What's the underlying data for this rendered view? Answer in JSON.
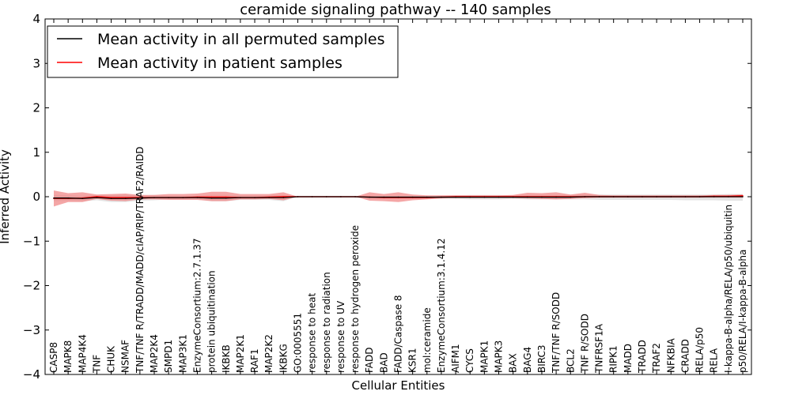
{
  "chart_data": {
    "type": "line",
    "title": "ceramide signaling pathway -- 140 samples",
    "xlabel": "Cellular Entities",
    "ylabel": "Inferred Activity",
    "ylim": [
      -4,
      4
    ],
    "yticks": [
      4,
      3,
      2,
      1,
      0,
      -1,
      -2,
      -3,
      -4
    ],
    "legend_position": "top-left",
    "colors": {
      "permuted_line": "#000000",
      "patient_line": "#ff0000",
      "permuted_band": "#cccccc",
      "patient_band": "#f08080"
    },
    "categories": [
      "CASP8",
      "MAPK8",
      "MAP4K4",
      "TNF",
      "CHUK",
      "NSMAF",
      "TNF/TNF R/TRADD/MADD/cIAP/RIP/TRAF2/RAIDD",
      "MAP2K4",
      "SMPD1",
      "MAP3K1",
      "EnzymeConsortium:2.7.1.37",
      "protein ubiquitination",
      "IKBKB",
      "MAP2K1",
      "RAF1",
      "MAP2K2",
      "IKBKG",
      "GO:0005551",
      "response to heat",
      "response to radiation",
      "response to UV",
      "response to hydrogen peroxide",
      "FADD",
      "BAD",
      "FADD/Caspase 8",
      "KSR1",
      "mol:ceramide",
      "EnzymeConsortium:3.1.4.12",
      "AIFM1",
      "CYCS",
      "MAPK1",
      "MAPK3",
      "BAX",
      "BAG4",
      "BIRC3",
      "TNF/TNF R/SODD",
      "BCL2",
      "TNF R/SODD",
      "TNFRSF1A",
      "RIPK1",
      "MADD",
      "TRADD",
      "TRAF2",
      "NFKBIA",
      "CRADD",
      "RELA/p50",
      "RELA",
      "I-kappa-B-alpha/RELA/p50/ubiquitin",
      "p50/RELA/I-kappa-B-alpha"
    ],
    "series": [
      {
        "name": "Mean activity in all permuted samples",
        "values": [
          -0.03,
          -0.03,
          -0.04,
          -0.02,
          -0.04,
          -0.04,
          -0.03,
          -0.02,
          -0.02,
          -0.02,
          -0.02,
          -0.03,
          -0.03,
          -0.02,
          -0.02,
          -0.02,
          -0.02,
          0,
          0,
          0,
          0,
          0,
          -0.01,
          -0.01,
          -0.01,
          -0.01,
          -0.01,
          -0.01,
          -0.01,
          -0.01,
          -0.01,
          -0.01,
          -0.01,
          -0.01,
          -0.01,
          -0.01,
          -0.01,
          0,
          0,
          0,
          0,
          0,
          0,
          0,
          0,
          0,
          0,
          0,
          0
        ],
        "lower": [
          -0.1,
          -0.09,
          -0.1,
          -0.08,
          -0.12,
          -0.12,
          -0.09,
          -0.08,
          -0.06,
          -0.06,
          -0.06,
          -0.1,
          -0.1,
          -0.07,
          -0.07,
          -0.07,
          -0.1,
          0,
          0,
          0,
          0,
          0,
          -0.03,
          -0.03,
          -0.03,
          -0.03,
          -0.03,
          -0.04,
          -0.05,
          -0.06,
          -0.06,
          -0.06,
          -0.05,
          -0.06,
          -0.06,
          -0.06,
          -0.06,
          -0.06,
          -0.07,
          -0.07,
          -0.07,
          -0.07,
          -0.07,
          -0.07,
          -0.08,
          -0.08,
          -0.08,
          -0.09,
          -0.09
        ],
        "upper": [
          0.04,
          0.03,
          0.02,
          0.04,
          0.04,
          0.04,
          0.03,
          0.04,
          0.02,
          0.02,
          0.02,
          0.04,
          0.04,
          0.03,
          0.03,
          0.03,
          0.04,
          0,
          0,
          0,
          0,
          0,
          0.01,
          0.01,
          0.01,
          0.01,
          0.01,
          0.02,
          0.03,
          0.04,
          0.04,
          0.04,
          0.03,
          0.04,
          0.04,
          0.04,
          0.04,
          0.05,
          0.05,
          0.05,
          0.05,
          0.05,
          0.05,
          0.05,
          0.05,
          0.05,
          0.05,
          0.06,
          0.06
        ]
      },
      {
        "name": "Mean activity in patient samples",
        "values": [
          -0.04,
          -0.04,
          -0.03,
          0,
          -0.02,
          -0.02,
          -0.02,
          -0.02,
          -0.02,
          -0.02,
          -0.01,
          -0.01,
          -0.01,
          -0.02,
          -0.02,
          -0.01,
          0,
          0,
          0,
          0,
          0,
          0,
          -0.01,
          -0.02,
          -0.02,
          -0.02,
          -0.02,
          -0.01,
          0,
          0,
          0,
          0,
          0,
          0,
          0,
          0,
          0,
          0,
          0,
          0,
          0,
          0,
          0,
          0,
          0,
          0,
          0.01,
          0.01,
          0.02
        ],
        "lower": [
          -0.22,
          -0.12,
          -0.12,
          -0.05,
          -0.09,
          -0.1,
          -0.06,
          -0.06,
          -0.07,
          -0.07,
          -0.07,
          -0.1,
          -0.1,
          -0.06,
          -0.06,
          -0.05,
          -0.08,
          0,
          0,
          0,
          0,
          0,
          -0.09,
          -0.1,
          -0.12,
          -0.08,
          -0.06,
          -0.04,
          -0.03,
          -0.03,
          -0.03,
          -0.03,
          -0.03,
          -0.04,
          -0.05,
          -0.06,
          -0.05,
          -0.03,
          -0.02,
          -0.02,
          -0.02,
          -0.02,
          -0.02,
          -0.02,
          -0.02,
          -0.02,
          -0.02,
          -0.02,
          -0.02
        ],
        "upper": [
          0.14,
          0.08,
          0.1,
          0.05,
          0.06,
          0.07,
          0.04,
          0.04,
          0.06,
          0.06,
          0.07,
          0.11,
          0.11,
          0.06,
          0.06,
          0.06,
          0.1,
          0,
          0,
          0,
          0,
          0,
          0.1,
          0.06,
          0.1,
          0.05,
          0.03,
          0.03,
          0.03,
          0.03,
          0.03,
          0.03,
          0.04,
          0.09,
          0.08,
          0.1,
          0.05,
          0.09,
          0.04,
          0.03,
          0.03,
          0.03,
          0.03,
          0.03,
          0.03,
          0.03,
          0.04,
          0.04,
          0.05
        ]
      }
    ]
  }
}
